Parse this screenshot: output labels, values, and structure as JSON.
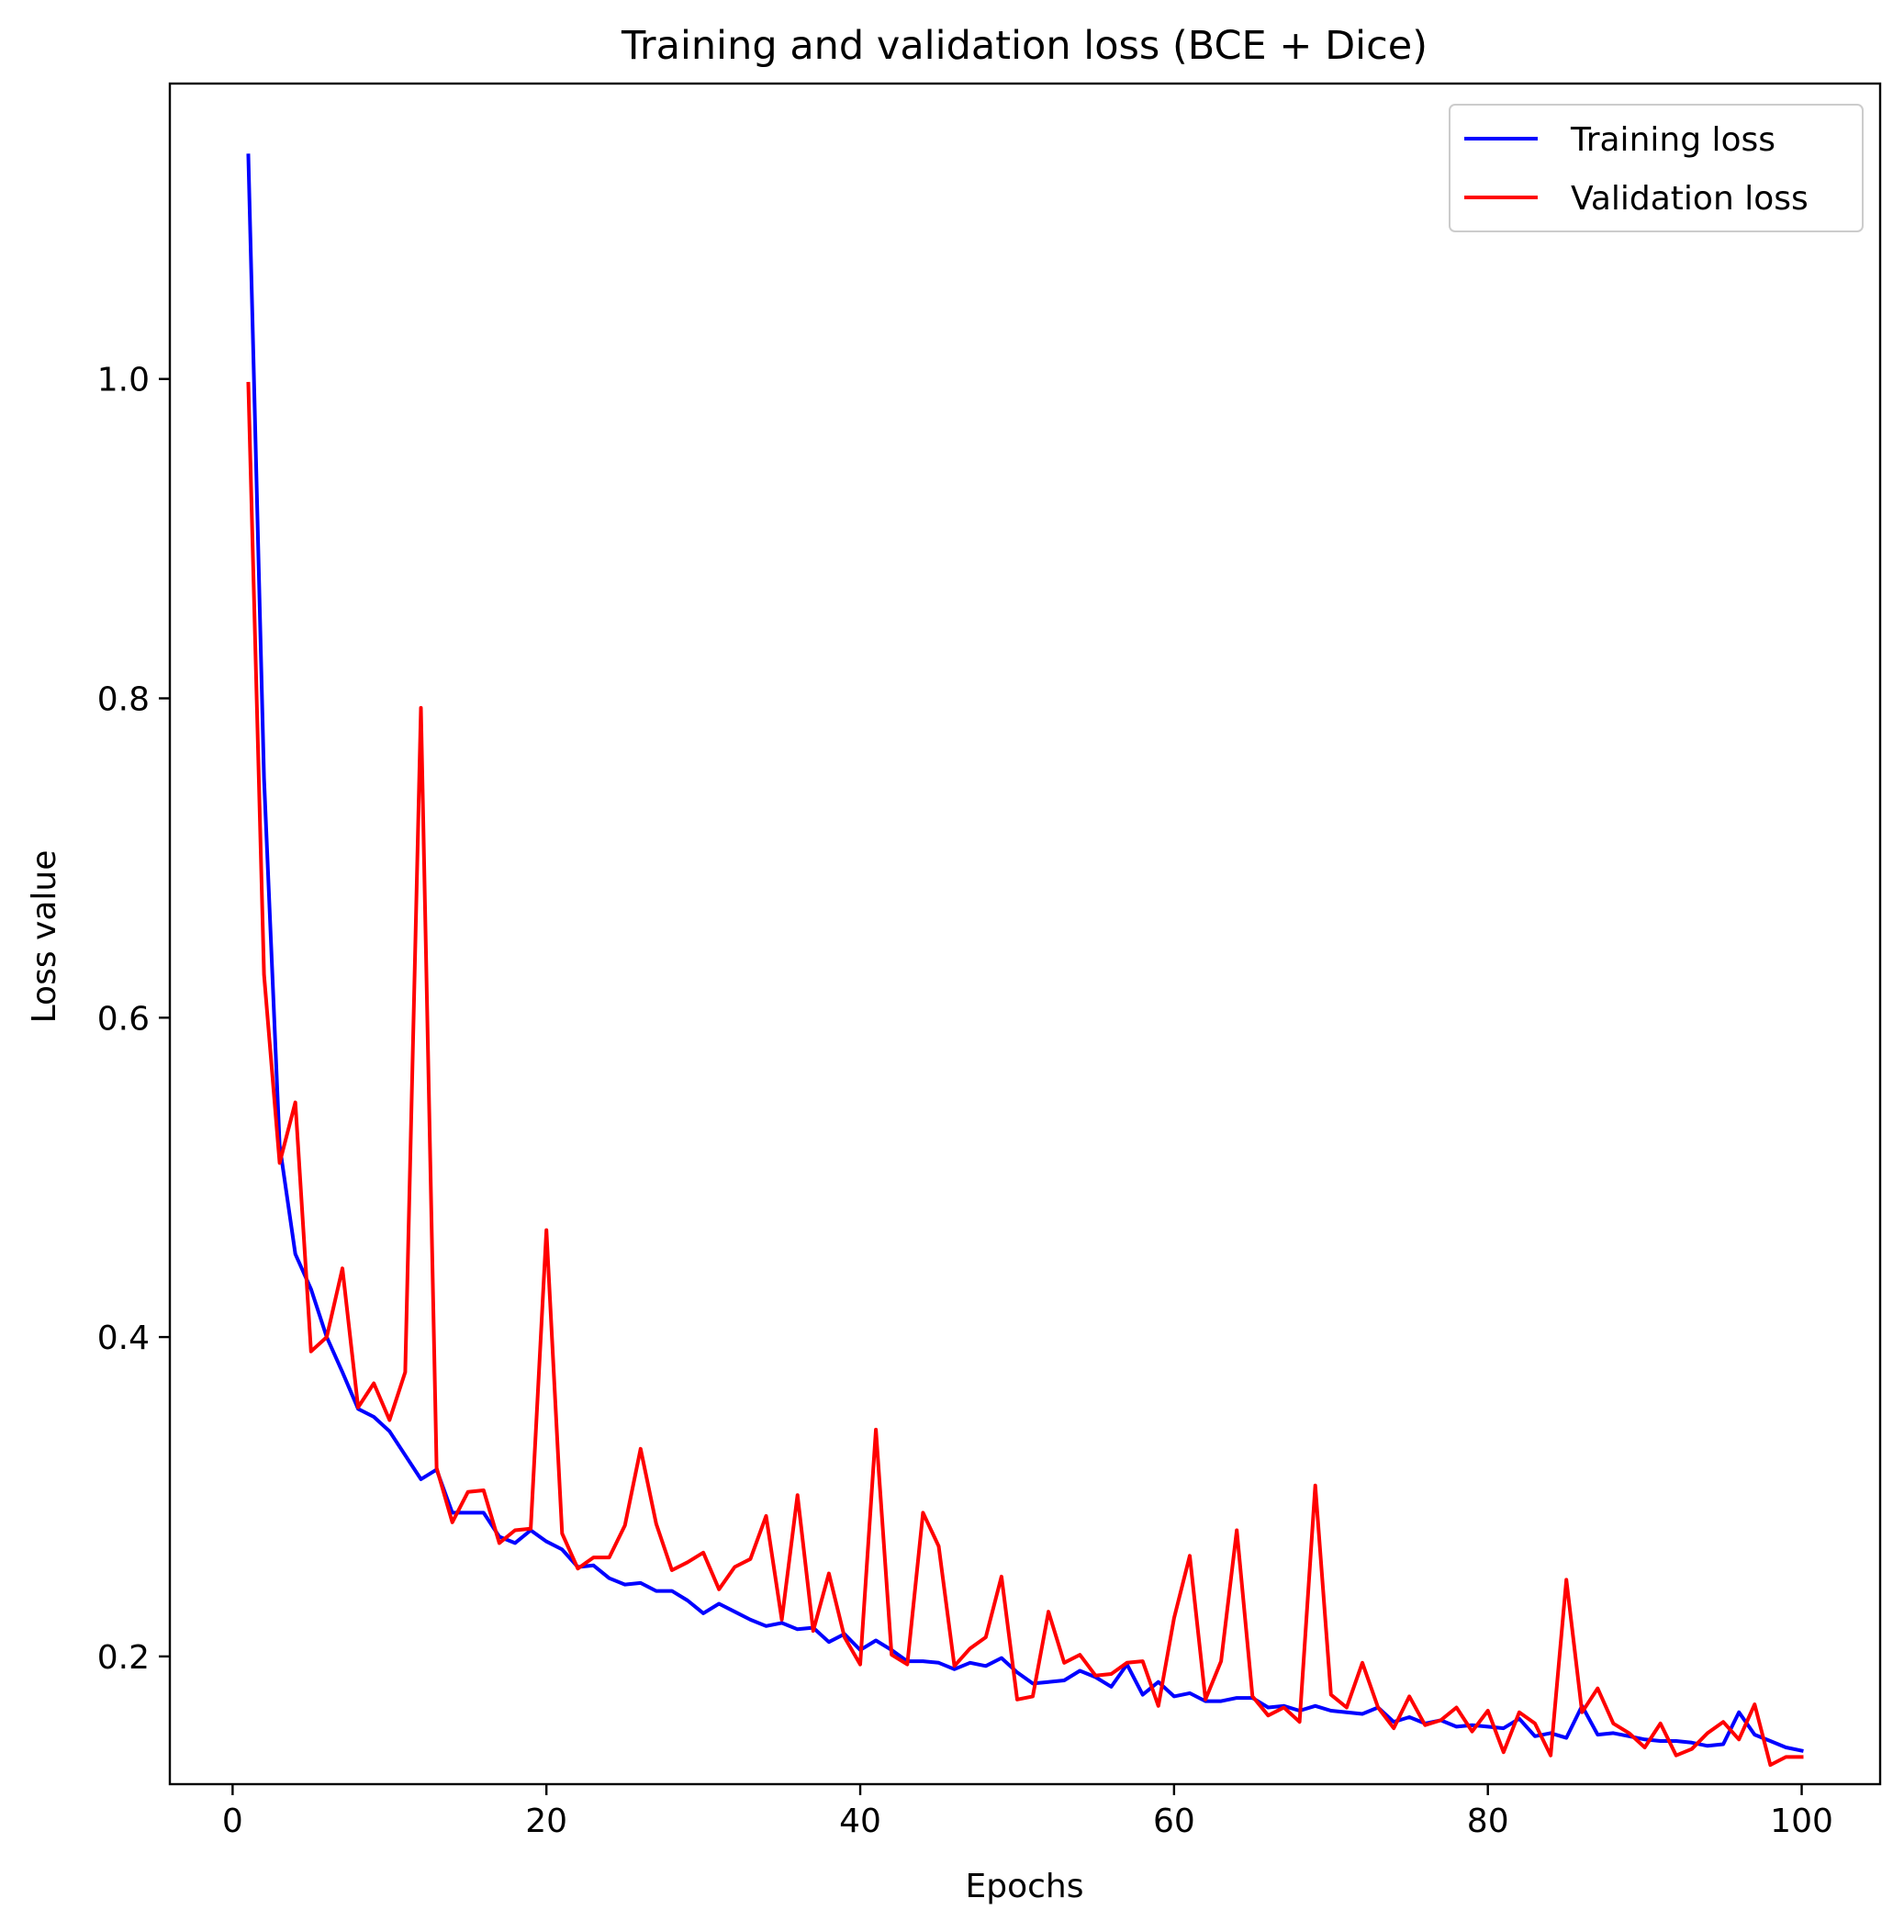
{
  "chart_data": {
    "type": "line",
    "title": "Training and validation loss (BCE + Dice)",
    "xlabel": "Epochs",
    "ylabel": "Loss value",
    "xlim": [
      -4,
      105
    ],
    "ylim": [
      0.12,
      1.185
    ],
    "xticks": [
      0,
      20,
      40,
      60,
      80,
      100
    ],
    "yticks": [
      0.2,
      0.4,
      0.6,
      0.8,
      1.0
    ],
    "xtick_labels": [
      "0",
      "20",
      "40",
      "60",
      "80",
      "100"
    ],
    "ytick_labels": [
      "0.2",
      "0.4",
      "0.6",
      "0.8",
      "1.0"
    ],
    "grid": false,
    "legend_position": "top-right",
    "x": [
      1,
      2,
      3,
      4,
      5,
      6,
      7,
      8,
      9,
      10,
      11,
      12,
      13,
      14,
      15,
      16,
      17,
      18,
      19,
      20,
      21,
      22,
      23,
      24,
      25,
      26,
      27,
      28,
      29,
      30,
      31,
      32,
      33,
      34,
      35,
      36,
      37,
      38,
      39,
      40,
      41,
      42,
      43,
      44,
      45,
      46,
      47,
      48,
      49,
      50,
      51,
      52,
      53,
      54,
      55,
      56,
      57,
      58,
      59,
      60,
      61,
      62,
      63,
      64,
      65,
      66,
      67,
      68,
      69,
      70,
      71,
      72,
      73,
      74,
      75,
      76,
      77,
      78,
      79,
      80,
      81,
      82,
      83,
      84,
      85,
      86,
      87,
      88,
      89,
      90,
      91,
      92,
      93,
      94,
      95,
      96,
      97,
      98,
      99,
      100
    ],
    "series": [
      {
        "name": "Training loss",
        "color": "#0000ff",
        "values": [
          1.14,
          0.75,
          0.52,
          0.452,
          0.43,
          0.4,
          0.378,
          0.355,
          0.35,
          0.341,
          0.326,
          0.311,
          0.317,
          0.29,
          0.29,
          0.29,
          0.275,
          0.271,
          0.279,
          0.272,
          0.267,
          0.256,
          0.257,
          0.249,
          0.245,
          0.246,
          0.241,
          0.241,
          0.235,
          0.227,
          0.233,
          0.228,
          0.223,
          0.219,
          0.221,
          0.217,
          0.218,
          0.209,
          0.214,
          0.204,
          0.21,
          0.204,
          0.197,
          0.197,
          0.196,
          0.192,
          0.196,
          0.194,
          0.199,
          0.19,
          0.183,
          0.184,
          0.185,
          0.191,
          0.187,
          0.181,
          0.195,
          0.176,
          0.184,
          0.175,
          0.177,
          0.172,
          0.172,
          0.174,
          0.174,
          0.168,
          0.169,
          0.166,
          0.169,
          0.166,
          0.165,
          0.164,
          0.168,
          0.159,
          0.162,
          0.158,
          0.16,
          0.156,
          0.157,
          0.156,
          0.155,
          0.161,
          0.15,
          0.152,
          0.149,
          0.169,
          0.151,
          0.152,
          0.15,
          0.148,
          0.147,
          0.147,
          0.146,
          0.144,
          0.145,
          0.165,
          0.151,
          0.147,
          0.143,
          0.141
        ]
      },
      {
        "name": "Validation loss",
        "color": "#ff0000",
        "values": [
          0.997,
          0.627,
          0.509,
          0.547,
          0.391,
          0.4,
          0.443,
          0.356,
          0.371,
          0.348,
          0.378,
          0.794,
          0.318,
          0.284,
          0.303,
          0.304,
          0.271,
          0.279,
          0.28,
          0.467,
          0.277,
          0.255,
          0.262,
          0.262,
          0.282,
          0.33,
          0.283,
          0.254,
          0.259,
          0.265,
          0.242,
          0.256,
          0.261,
          0.288,
          0.223,
          0.301,
          0.216,
          0.252,
          0.212,
          0.195,
          0.342,
          0.201,
          0.195,
          0.29,
          0.269,
          0.194,
          0.205,
          0.212,
          0.25,
          0.173,
          0.175,
          0.228,
          0.196,
          0.201,
          0.188,
          0.189,
          0.196,
          0.197,
          0.169,
          0.224,
          0.263,
          0.173,
          0.197,
          0.279,
          0.175,
          0.163,
          0.168,
          0.159,
          0.307,
          0.176,
          0.168,
          0.196,
          0.168,
          0.155,
          0.175,
          0.157,
          0.16,
          0.168,
          0.153,
          0.166,
          0.14,
          0.165,
          0.158,
          0.138,
          0.248,
          0.165,
          0.18,
          0.158,
          0.152,
          0.143,
          0.158,
          0.138,
          0.142,
          0.152,
          0.159,
          0.148,
          0.17,
          0.132,
          0.137,
          0.137
        ]
      }
    ]
  }
}
